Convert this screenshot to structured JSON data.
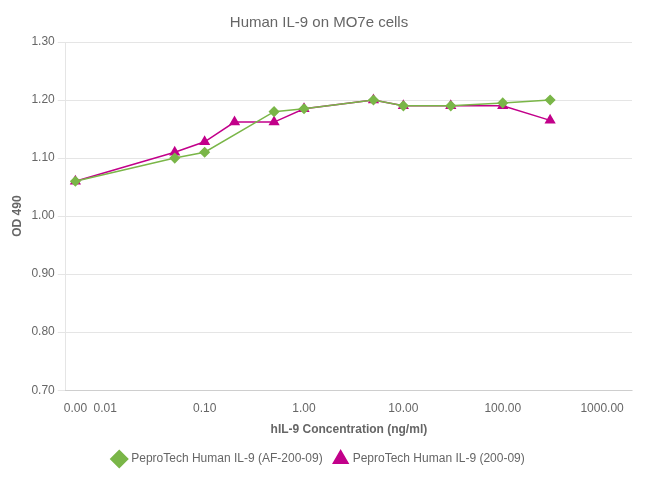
{
  "chart_data": {
    "type": "line",
    "title": "Human IL-9 on MO7e cells",
    "x_label": "hIL-9 Concentration (ng/ml)",
    "y_label": "OD 490",
    "log": "x",
    "xlim": [
      0.004,
      2000
    ],
    "xticks": [
      {
        "value": 0.005,
        "label": "0.00"
      },
      0.01,
      {
        "value": 0.1,
        "label": "0.10"
      },
      {
        "value": 1.0,
        "label": "1.00"
      },
      {
        "value": 10.0,
        "label": "10.00"
      },
      {
        "value": 100.0,
        "label": "100.00"
      },
      {
        "value": 1000.0,
        "label": "1000.00"
      }
    ],
    "ylim": [
      0.7,
      1.3
    ],
    "yticks": [
      {
        "value": 0.7,
        "label": "0.70"
      },
      {
        "value": 0.8,
        "label": "0.80"
      },
      {
        "value": 0.9,
        "label": "0.90"
      },
      {
        "value": 1.0,
        "label": "1.00"
      },
      {
        "value": 1.1,
        "label": "1.10"
      },
      {
        "value": 1.2,
        "label": "1.20"
      },
      {
        "value": 1.3,
        "label": "1.30"
      }
    ],
    "grid": "y",
    "legend": "bottom",
    "series": [
      {
        "name": "PeproTech Human IL-9 (AF-200-09)",
        "color": "#7ab648",
        "marker": "diamond",
        "x": [
          0.005,
          0.05,
          0.1,
          0.5,
          1.0,
          5.0,
          10.0,
          30.0,
          100.0,
          300.0
        ],
        "values": [
          1.06,
          1.1,
          1.11,
          1.18,
          1.185,
          1.2,
          1.19,
          1.19,
          1.195,
          1.2
        ]
      },
      {
        "name": "PeproTech Human IL-9 (200-09)",
        "color": "#c2008a",
        "marker": "triangle",
        "x": [
          0.005,
          0.05,
          0.1,
          0.2,
          0.5,
          1.0,
          5.0,
          10.0,
          30.0,
          100.0,
          300.0
        ],
        "values": [
          1.06,
          1.11,
          1.128,
          1.162,
          1.162,
          1.185,
          1.2,
          1.19,
          1.19,
          1.19,
          1.165
        ]
      }
    ]
  }
}
